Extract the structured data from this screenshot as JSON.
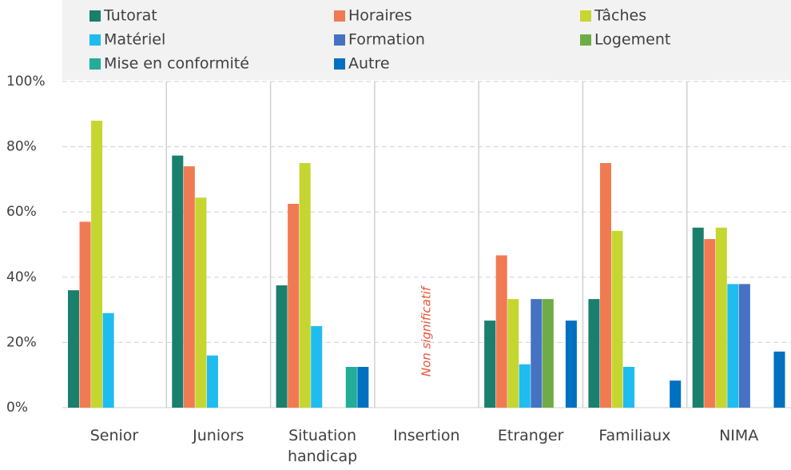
{
  "chart_data": {
    "type": "bar",
    "categories": [
      "Senior",
      "Juniors",
      "Situation handicap",
      "Insertion",
      "Etranger",
      "Familiaux",
      "NIMA"
    ],
    "series": [
      {
        "name": "Tutorat",
        "color": "#1b7f6d",
        "values": [
          36,
          77.3,
          37.5,
          null,
          26.7,
          33.3,
          55.2
        ]
      },
      {
        "name": "Horaires",
        "color": "#f07b52",
        "values": [
          57,
          74,
          62.5,
          null,
          46.7,
          75,
          51.7
        ]
      },
      {
        "name": "Tâches",
        "color": "#c6d630",
        "values": [
          88,
          64.4,
          75,
          null,
          33.3,
          54.2,
          55.2
        ]
      },
      {
        "name": "Matériel",
        "color": "#1fbcf0",
        "values": [
          29,
          16,
          25,
          null,
          13.3,
          12.5,
          37.9
        ]
      },
      {
        "name": "Formation",
        "color": "#4672c4",
        "values": [
          0,
          0,
          0,
          null,
          33.3,
          0,
          37.9
        ]
      },
      {
        "name": "Logement",
        "color": "#6fac46",
        "values": [
          0,
          0,
          0,
          null,
          33.3,
          0,
          0
        ]
      },
      {
        "name": "Mise en conformité",
        "color": "#22ad98",
        "values": [
          0,
          0,
          12.5,
          null,
          0,
          0,
          0
        ]
      },
      {
        "name": "Autre",
        "color": "#0070c0",
        "values": [
          0,
          0,
          12.5,
          null,
          26.7,
          8.3,
          17.2
        ]
      }
    ],
    "annotation": "Non significatif",
    "ylim": [
      0,
      100
    ],
    "yticks": [
      {
        "value": 0,
        "label": "0%"
      },
      {
        "value": 20,
        "label": "20%"
      },
      {
        "value": 40,
        "label": "40%"
      },
      {
        "value": 60,
        "label": "60%"
      },
      {
        "value": 80,
        "label": "80%"
      },
      {
        "value": 100,
        "label": "100%"
      }
    ],
    "grid": true,
    "legend": "top"
  }
}
